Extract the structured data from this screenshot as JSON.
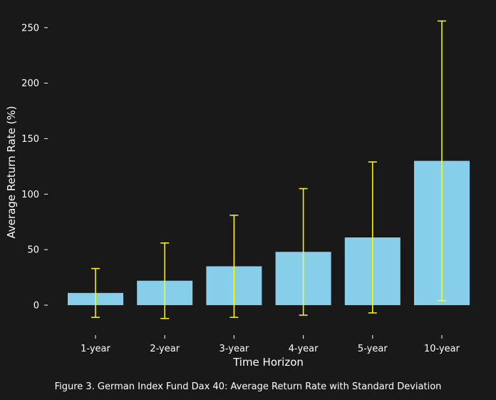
{
  "chart_data": {
    "type": "bar",
    "categories": [
      "1-year",
      "2-year",
      "3-year",
      "4-year",
      "5-year",
      "10-year"
    ],
    "values": [
      11,
      22,
      35,
      48,
      61,
      130
    ],
    "error": [
      22,
      34,
      46,
      57,
      68,
      126
    ],
    "xlabel": "Time Horizon",
    "ylabel": "Average Return Rate (%)",
    "yticks": [
      0,
      50,
      100,
      150,
      200,
      250
    ],
    "ylim": [
      -27,
      264
    ],
    "grid": false,
    "colors": {
      "background": "#191919",
      "bar": "#87ceeb",
      "errorbar": "#ffff00",
      "text": "#ffffff",
      "tick": "#ffffff"
    }
  },
  "caption": "Figure 3. German Index Fund Dax 40: Average Return Rate with Standard Deviation"
}
